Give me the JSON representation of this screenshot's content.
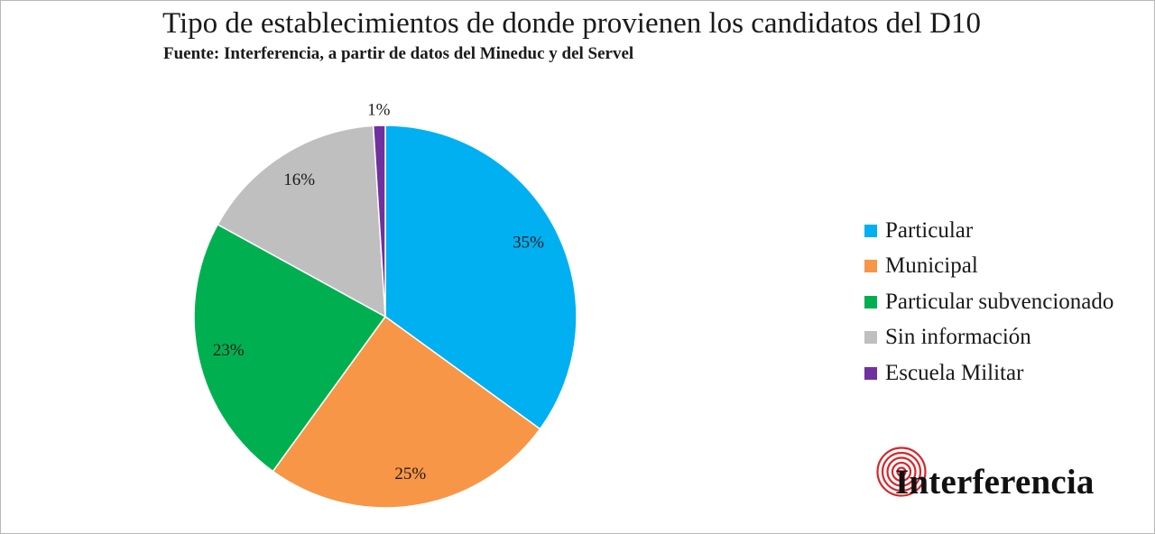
{
  "title": "Tipo de establecimientos de donde provienen los candidatos del D10",
  "subtitle": "Fuente: Interferencia, a partir de datos del Mineduc y del Servel",
  "chart_data": {
    "type": "pie",
    "slices": [
      {
        "name": "Particular",
        "value": 35,
        "label": "35%",
        "color": "#00b0f0"
      },
      {
        "name": "Municipal",
        "value": 25,
        "label": "25%",
        "color": "#f79646"
      },
      {
        "name": "Particular subvencionado",
        "value": 23,
        "label": "23%",
        "color": "#00b050"
      },
      {
        "name": "Sin información",
        "value": 16,
        "label": "16%",
        "color": "#bfbfbf"
      },
      {
        "name": "Escuela Militar",
        "value": 1,
        "label": "1%",
        "color": "#7030a0"
      }
    ],
    "legend_position": "right"
  },
  "legend": {
    "items": [
      {
        "label": "Particular",
        "color": "#00b0f0"
      },
      {
        "label": "Municipal",
        "color": "#f79646"
      },
      {
        "label": "Particular subvencionado",
        "color": "#00b050"
      },
      {
        "label": "Sin información",
        "color": "#bfbfbf"
      },
      {
        "label": "Escuela Militar",
        "color": "#7030a0"
      }
    ]
  },
  "logo": {
    "text": "Interferencia",
    "icon": "concentric-arcs-icon",
    "color": "#d7262b"
  }
}
